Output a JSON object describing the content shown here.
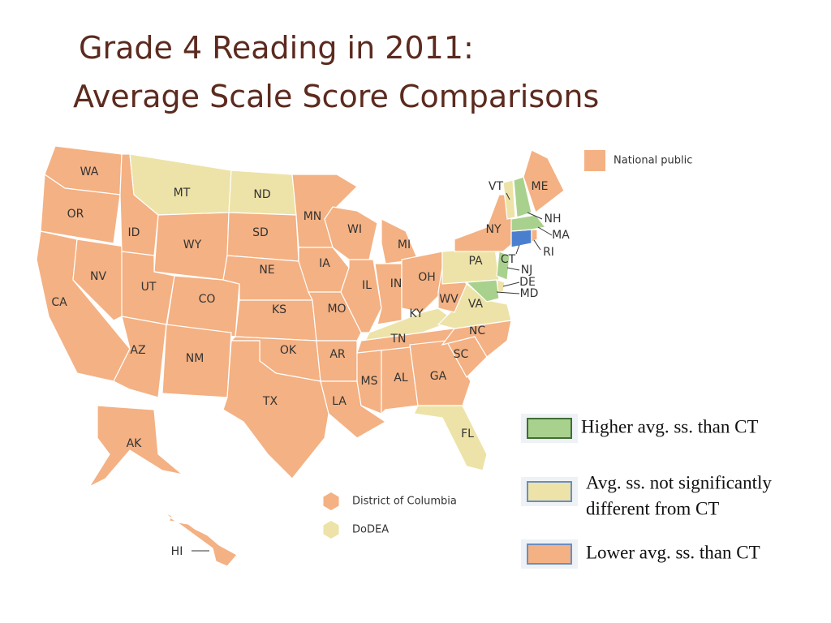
{
  "title": {
    "line1": "Grade 4 Reading in 2011:",
    "line2": "Average Scale Score Comparisons"
  },
  "categories": {
    "higher": {
      "label": "Higher avg. ss. than CT",
      "color": "#a9d18e",
      "border": "#3f6e33"
    },
    "same": {
      "lines": [
        "Avg. ss. not significantly",
        "different from CT"
      ],
      "color": "#ede3a8",
      "border": "#6c8ebf"
    },
    "lower": {
      "label": "Lower avg. ss. than CT",
      "color": "#f4b183",
      "border": "#6c8ebf"
    },
    "reference": {
      "color": "#4a7fd0"
    }
  },
  "map": {
    "states": [
      {
        "label": "WA",
        "category": "lower"
      },
      {
        "label": "OR",
        "category": "lower"
      },
      {
        "label": "CA",
        "category": "lower"
      },
      {
        "label": "NV",
        "category": "lower"
      },
      {
        "label": "ID",
        "category": "lower"
      },
      {
        "label": "MT",
        "category": "same"
      },
      {
        "label": "WY",
        "category": "lower"
      },
      {
        "label": "UT",
        "category": "lower"
      },
      {
        "label": "CO",
        "category": "lower"
      },
      {
        "label": "AZ",
        "category": "lower"
      },
      {
        "label": "NM",
        "category": "lower"
      },
      {
        "label": "ND",
        "category": "same"
      },
      {
        "label": "SD",
        "category": "lower"
      },
      {
        "label": "NE",
        "category": "lower"
      },
      {
        "label": "KS",
        "category": "lower"
      },
      {
        "label": "OK",
        "category": "lower"
      },
      {
        "label": "TX",
        "category": "lower"
      },
      {
        "label": "MN",
        "category": "lower"
      },
      {
        "label": "IA",
        "category": "lower"
      },
      {
        "label": "MO",
        "category": "lower"
      },
      {
        "label": "AR",
        "category": "lower"
      },
      {
        "label": "LA",
        "category": "lower"
      },
      {
        "label": "WI",
        "category": "lower"
      },
      {
        "label": "IL",
        "category": "lower"
      },
      {
        "label": "MS",
        "category": "lower"
      },
      {
        "label": "AL",
        "category": "lower"
      },
      {
        "label": "MI",
        "category": "lower"
      },
      {
        "label": "IN",
        "category": "lower"
      },
      {
        "label": "OH",
        "category": "lower"
      },
      {
        "label": "KY",
        "category": "same"
      },
      {
        "label": "TN",
        "category": "lower"
      },
      {
        "label": "GA",
        "category": "lower"
      },
      {
        "label": "FL",
        "category": "same"
      },
      {
        "label": "SC",
        "category": "lower"
      },
      {
        "label": "NC",
        "category": "lower"
      },
      {
        "label": "VA",
        "category": "same"
      },
      {
        "label": "WV",
        "category": "lower"
      },
      {
        "label": "PA",
        "category": "same"
      },
      {
        "label": "NY",
        "category": "lower"
      },
      {
        "label": "NJ",
        "category": "higher"
      },
      {
        "label": "DE",
        "category": "same"
      },
      {
        "label": "MD",
        "category": "higher"
      },
      {
        "label": "CT",
        "category": "reference"
      },
      {
        "label": "RI",
        "category": "lower"
      },
      {
        "label": "MA",
        "category": "higher"
      },
      {
        "label": "VT",
        "category": "same"
      },
      {
        "label": "NH",
        "category": "higher"
      },
      {
        "label": "ME",
        "category": "lower"
      },
      {
        "label": "AK",
        "category": "lower"
      },
      {
        "label": "HI",
        "category": "lower"
      }
    ],
    "legend": [
      {
        "label": "National public",
        "category": "lower"
      },
      {
        "label": "District of Columbia",
        "category": "lower"
      },
      {
        "label": "DoDEA",
        "category": "same"
      }
    ]
  }
}
